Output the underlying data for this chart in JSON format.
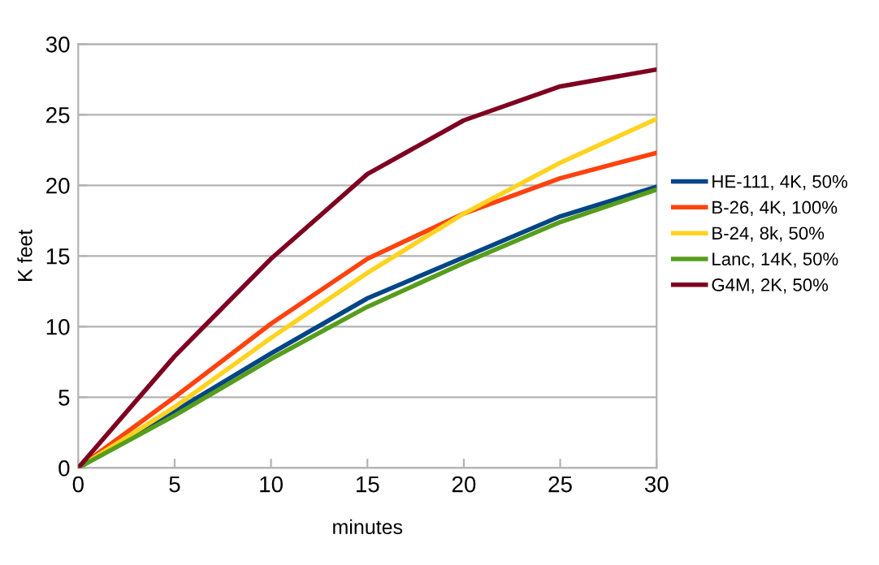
{
  "chart_data": {
    "type": "line",
    "xlabel": "minutes",
    "ylabel": "K feet",
    "x": [
      0,
      5,
      10,
      15,
      20,
      25,
      30
    ],
    "series": [
      {
        "name": "HE-111, 4K, 50%",
        "color": "#004586",
        "values": [
          0,
          4.0,
          8.1,
          12.0,
          14.9,
          17.8,
          19.9
        ]
      },
      {
        "name": "B-26, 4K, 100%",
        "color": "#ff420e",
        "values": [
          0,
          5.0,
          10.2,
          14.8,
          18.0,
          20.5,
          22.3
        ]
      },
      {
        "name": "B-24, 8k, 50%",
        "color": "#ffd320",
        "values": [
          0,
          4.3,
          9.2,
          13.8,
          18.0,
          21.6,
          24.7
        ]
      },
      {
        "name": "Lanc, 14K, 50%",
        "color": "#579d1c",
        "values": [
          0,
          3.7,
          7.7,
          11.4,
          14.5,
          17.4,
          19.7
        ]
      },
      {
        "name": "G4M, 2K, 50%",
        "color": "#7e0021",
        "values": [
          0,
          7.9,
          14.8,
          20.8,
          24.6,
          27.0,
          28.2
        ]
      }
    ],
    "xlim": [
      0,
      30
    ],
    "xticks": [
      0,
      5,
      10,
      15,
      20,
      25,
      30
    ],
    "ylim": [
      0,
      30
    ],
    "yticks": [
      0,
      5,
      10,
      15,
      20,
      25,
      30
    ],
    "grid": "y",
    "legend": "right",
    "marker": "none",
    "line_style": "solid"
  }
}
